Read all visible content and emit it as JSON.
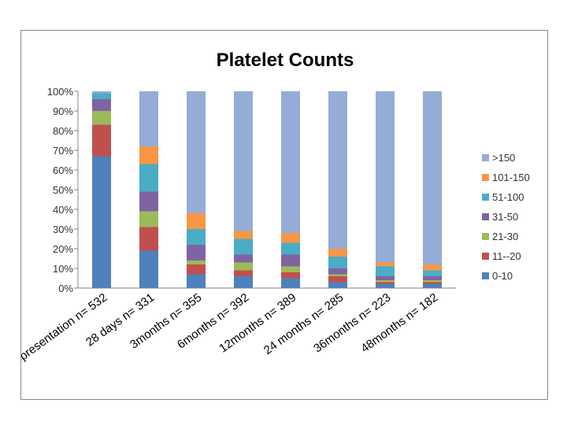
{
  "chart_data": {
    "type": "bar",
    "stacked": true,
    "percent": true,
    "title": "Platelet Counts",
    "categories": [
      "presentation n= 532",
      "28 days n= 331",
      "3months n= 355",
      "6months n= 392",
      "12months n= 389",
      "24 months n= 285",
      "36months n= 223",
      "48months n= 182"
    ],
    "series": [
      {
        "name": "0-10",
        "color": "#4F81BD",
        "values": [
          67,
          19,
          7,
          6,
          5,
          3,
          2,
          2
        ]
      },
      {
        "name": "11--20",
        "color": "#C0504D",
        "values": [
          16,
          12,
          5,
          3,
          3,
          3,
          1,
          1
        ]
      },
      {
        "name": "21-30",
        "color": "#9BBB59",
        "values": [
          7,
          8,
          2,
          4,
          3,
          1,
          1,
          1
        ]
      },
      {
        "name": "31-50",
        "color": "#8064A2",
        "values": [
          6,
          10,
          8,
          4,
          6,
          3,
          2,
          2
        ]
      },
      {
        "name": "51-100",
        "color": "#4BACC6",
        "values": [
          3,
          14,
          8,
          8,
          6,
          6,
          5,
          3
        ]
      },
      {
        "name": "101-150",
        "color": "#F79646",
        "values": [
          0,
          9,
          8,
          4,
          5,
          4,
          2,
          3
        ]
      },
      {
        "name": ">150",
        "color": "#94ACD6",
        "values": [
          1,
          28,
          62,
          71,
          72,
          80,
          87,
          88
        ]
      }
    ],
    "ylim": [
      0,
      100
    ],
    "yticks": [
      "0%",
      "10%",
      "20%",
      "30%",
      "40%",
      "50%",
      "60%",
      "70%",
      "80%",
      "90%",
      "100%"
    ],
    "grid": false,
    "legend": "right",
    "legend_order": [
      ">150",
      "101-150",
      "51-100",
      "31-50",
      "21-30",
      "11--20",
      "0-10"
    ]
  }
}
